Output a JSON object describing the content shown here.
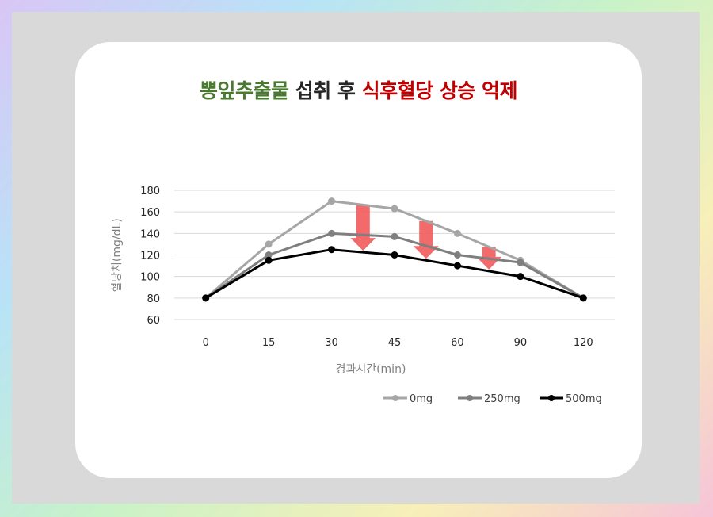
{
  "title": {
    "part1": "뽕잎추출물",
    "part2": " 섭취 후 ",
    "part3": "식후혈당 상승 억제"
  },
  "colors": {
    "title_green": "#4a7a30",
    "title_red": "#c00000",
    "arrow": "#f25a5a"
  },
  "chart_data": {
    "type": "line",
    "xlabel": "경과시간(min)",
    "ylabel": "혈당치(mg/dL)",
    "categories": [
      "0",
      "15",
      "30",
      "45",
      "60",
      "90",
      "120"
    ],
    "ylim": [
      60,
      180
    ],
    "yticks": [
      60,
      80,
      100,
      120,
      140,
      160,
      180
    ],
    "grid": true,
    "legend_position": "bottom-right",
    "series": [
      {
        "name": "0mg",
        "color": "#a6a6a6",
        "values": [
          80,
          130,
          170,
          163,
          140,
          115,
          80
        ]
      },
      {
        "name": "250mg",
        "color": "#7f7f7f",
        "values": [
          80,
          120,
          140,
          137,
          120,
          113,
          80
        ]
      },
      {
        "name": "500mg",
        "color": "#000000",
        "values": [
          80,
          115,
          125,
          120,
          110,
          100,
          80
        ]
      }
    ]
  }
}
